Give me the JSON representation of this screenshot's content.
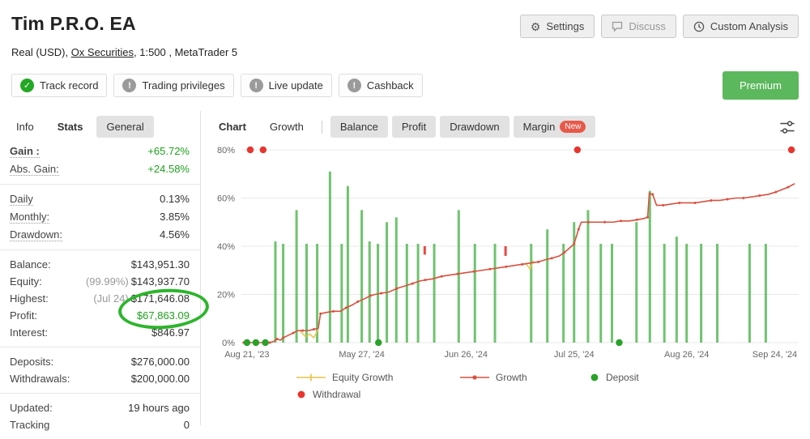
{
  "colors": {
    "positive": "#1fa11f",
    "growth_line": "#d9503f",
    "equity_line": "#e6c34a",
    "deposit_bar": "#57b957",
    "deposit_dot": "#28a228",
    "withdrawal_dot": "#e8352e",
    "premium": "#5cb85c",
    "verified": "#22a822",
    "warning": "#9b9b9b",
    "new_badge": "#e8594a",
    "annotation": "#2cb52c"
  },
  "header": {
    "title": "Tim P.R.O. EA",
    "buttons": [
      {
        "label": "Settings"
      },
      {
        "label": "Discuss"
      },
      {
        "label": "Custom Analysis"
      }
    ],
    "subtitle": {
      "prefix": "Real (USD), ",
      "link": "Ox Securities",
      "suffix": ", 1:500 , MetaTrader 5"
    },
    "badges": [
      {
        "label": "Track record",
        "status": "verified"
      },
      {
        "label": "Trading privileges",
        "status": "warning"
      },
      {
        "label": "Live update",
        "status": "warning"
      },
      {
        "label": "Cashback",
        "status": "warning"
      }
    ],
    "premium_label": "Premium"
  },
  "sidebar": {
    "tabs": [
      {
        "label": "Info",
        "style": "plain"
      },
      {
        "label": "Stats",
        "style": "active"
      },
      {
        "label": "General",
        "style": "pill"
      }
    ],
    "groups": [
      [
        {
          "label": "Gain :",
          "value": "+65.72%",
          "dotted": true,
          "bold": true,
          "color": "green"
        },
        {
          "label": "Abs. Gain:",
          "value": "+24.58%",
          "dotted": true,
          "color": "green"
        }
      ],
      [
        {
          "label": "Daily",
          "value": "0.13%",
          "dotted": true
        },
        {
          "label": "Monthly:",
          "value": "3.85%",
          "dotted": true
        },
        {
          "label": "Drawdown:",
          "value": "4.56%",
          "dotted": true
        }
      ],
      [
        {
          "label": "Balance:",
          "value": "$143,951.30"
        },
        {
          "label": "Equity:",
          "prefix": "(99.99%)",
          "value": "$143,937.70"
        },
        {
          "label": "Highest:",
          "prefix": "(Jul 24)",
          "value": "$171,646.08"
        },
        {
          "label": "Profit:",
          "value": "$67,863.09",
          "color": "green"
        },
        {
          "label": "Interest:",
          "value": "$846.97"
        }
      ],
      [
        {
          "label": "Deposits:",
          "value": "$276,000.00"
        },
        {
          "label": "Withdrawals:",
          "value": "$200,000.00"
        }
      ],
      [
        {
          "label": "Updated:",
          "value": "19 hours ago"
        },
        {
          "label": "Tracking",
          "value": "0"
        }
      ]
    ]
  },
  "chart_panel": {
    "tabs": [
      {
        "label": "Chart",
        "style": "title"
      },
      {
        "label": "Growth",
        "style": "plain",
        "divider_after": true
      },
      {
        "label": "Balance",
        "style": "pill"
      },
      {
        "label": "Profit",
        "style": "pill"
      },
      {
        "label": "Drawdown",
        "style": "pill"
      },
      {
        "label": "Margin",
        "style": "pill",
        "badge": "New"
      }
    ]
  },
  "chart_data": {
    "type": "line",
    "title": "Growth",
    "ylim": [
      0,
      80
    ],
    "yticks": [
      0,
      20,
      40,
      60,
      80
    ],
    "ytick_suffix": "%",
    "xticks": [
      {
        "pos": 1.0,
        "label": "Aug 21, '23"
      },
      {
        "pos": 21.6,
        "label": "May 27, '24"
      },
      {
        "pos": 40.3,
        "label": "Jun 26, '24"
      },
      {
        "pos": 59.7,
        "label": "Jul 25, '24"
      },
      {
        "pos": 79.9,
        "label": "Aug 26, '24"
      },
      {
        "pos": 95.7,
        "label": "Sep 24, '24"
      }
    ],
    "series": [
      {
        "name": "Growth",
        "color": "#d9503f",
        "points": [
          [
            0.4,
            0
          ],
          [
            1.4,
            0
          ],
          [
            2.6,
            0
          ],
          [
            3.9,
            0
          ],
          [
            5.1,
            0
          ],
          [
            5.8,
            0.5
          ],
          [
            6.4,
            1.5
          ],
          [
            7.0,
            1.0
          ],
          [
            7.5,
            2.0
          ],
          [
            8.4,
            3.0
          ],
          [
            9.3,
            4.0
          ],
          [
            10.1,
            5.0
          ],
          [
            11.0,
            5.0
          ],
          [
            12.0,
            5.0
          ],
          [
            13.0,
            5.5
          ],
          [
            13.8,
            6.0
          ],
          [
            14.2,
            12.0
          ],
          [
            15.2,
            12.5
          ],
          [
            16.5,
            13.0
          ],
          [
            17.8,
            13.0
          ],
          [
            18.8,
            14.5
          ],
          [
            19.8,
            15.5
          ],
          [
            20.9,
            17.0
          ],
          [
            21.9,
            18.0
          ],
          [
            23.2,
            19.5
          ],
          [
            24.0,
            20.0
          ],
          [
            25.1,
            20.5
          ],
          [
            26.5,
            21.0
          ],
          [
            27.9,
            22.5
          ],
          [
            29.3,
            23.5
          ],
          [
            30.7,
            24.5
          ],
          [
            31.9,
            25.5
          ],
          [
            33.0,
            26.0
          ],
          [
            34.4,
            26.5
          ],
          [
            35.9,
            27.5
          ],
          [
            37.3,
            28.0
          ],
          [
            38.8,
            28.5
          ],
          [
            40.2,
            29.0
          ],
          [
            41.7,
            29.5
          ],
          [
            43.1,
            30.0
          ],
          [
            44.6,
            30.5
          ],
          [
            46.0,
            31.0
          ],
          [
            47.5,
            31.5
          ],
          [
            48.9,
            32.0
          ],
          [
            50.4,
            32.5
          ],
          [
            51.8,
            33.0
          ],
          [
            53.3,
            33.5
          ],
          [
            54.7,
            34.5
          ],
          [
            55.7,
            35.0
          ],
          [
            57.1,
            36.0
          ],
          [
            58.0,
            37.5
          ],
          [
            59.0,
            39.5
          ],
          [
            59.7,
            41.0
          ],
          [
            60.1,
            44.0
          ],
          [
            60.5,
            47.0
          ],
          [
            61.0,
            50.0
          ],
          [
            62.3,
            50.0
          ],
          [
            63.8,
            50.0
          ],
          [
            65.2,
            50.0
          ],
          [
            66.7,
            50.0
          ],
          [
            68.1,
            50.5
          ],
          [
            69.6,
            50.5
          ],
          [
            71.0,
            51.0
          ],
          [
            72.2,
            51.5
          ],
          [
            72.9,
            52.0
          ],
          [
            73.2,
            62.0
          ],
          [
            73.8,
            61.5
          ],
          [
            74.5,
            57.0
          ],
          [
            75.7,
            57.0
          ],
          [
            77.1,
            57.5
          ],
          [
            78.6,
            58.0
          ],
          [
            80.0,
            58.0
          ],
          [
            81.4,
            58.0
          ],
          [
            82.9,
            58.5
          ],
          [
            84.3,
            59.0
          ],
          [
            85.8,
            59.0
          ],
          [
            87.2,
            59.5
          ],
          [
            88.7,
            60.0
          ],
          [
            90.1,
            60.0
          ],
          [
            91.6,
            60.5
          ],
          [
            93.0,
            61.0
          ],
          [
            94.5,
            61.5
          ],
          [
            95.9,
            62.5
          ],
          [
            97.0,
            63.5
          ],
          [
            98.1,
            64.5
          ],
          [
            99.3,
            66.0
          ]
        ]
      },
      {
        "name": "Equity Growth",
        "color": "#e6c34a",
        "segments": [
          [
            [
              10.5,
              5.0
            ],
            [
              11.5,
              2.5
            ],
            [
              12.3,
              3.5
            ],
            [
              13.0,
              2.0
            ],
            [
              13.8,
              5.5
            ]
          ],
          [
            [
              51.0,
              33.0
            ],
            [
              51.8,
              30.5
            ],
            [
              52.4,
              34.0
            ]
          ]
        ]
      }
    ],
    "deposit_bars": [
      [
        6.1,
        42
      ],
      [
        7.5,
        41
      ],
      [
        9.9,
        55
      ],
      [
        11.7,
        41
      ],
      [
        13.6,
        41
      ],
      [
        15.9,
        71
      ],
      [
        18.0,
        41
      ],
      [
        19.1,
        65
      ],
      [
        21.6,
        55
      ],
      [
        23.0,
        42
      ],
      [
        24.5,
        41
      ],
      [
        26.1,
        50
      ],
      [
        27.8,
        52
      ],
      [
        29.7,
        41
      ],
      [
        31.7,
        41
      ],
      [
        34.6,
        41
      ],
      [
        39.0,
        55
      ],
      [
        41.9,
        41
      ],
      [
        45.5,
        41
      ],
      [
        52.0,
        41
      ],
      [
        54.9,
        47
      ],
      [
        57.8,
        41
      ],
      [
        59.7,
        50
      ],
      [
        62.2,
        55
      ],
      [
        64.5,
        41
      ],
      [
        66.5,
        41
      ],
      [
        70.9,
        50
      ],
      [
        73.3,
        63
      ],
      [
        75.9,
        41
      ],
      [
        78.1,
        44
      ],
      [
        79.9,
        41
      ],
      [
        82.5,
        41
      ],
      [
        85.4,
        41
      ],
      [
        91.2,
        41
      ],
      [
        94.1,
        41
      ]
    ],
    "withdrawal_bars": [
      [
        32.9,
        40,
        36.5
      ],
      [
        47.4,
        40,
        36.0
      ]
    ],
    "deposit_markers": [
      1.0,
      2.6,
      4.3,
      24.6,
      67.8
    ],
    "withdrawal_markers": [
      1.6,
      3.9,
      60.3,
      98.7
    ],
    "legend": [
      {
        "label": "Equity Growth",
        "marker": "line-plus",
        "color": "#e6c34a"
      },
      {
        "label": "Growth",
        "marker": "line-dot",
        "color": "#d9503f"
      },
      {
        "label": "Deposit",
        "marker": "dot",
        "color": "#28a228"
      },
      {
        "label": "Withdrawal",
        "marker": "dot",
        "color": "#e8352e"
      }
    ]
  }
}
